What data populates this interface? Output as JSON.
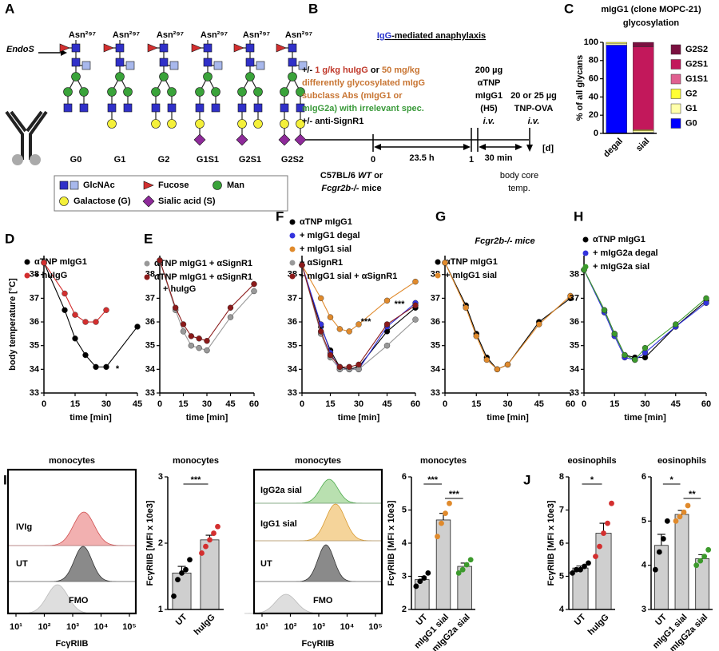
{
  "panel_letters": [
    "A",
    "B",
    "C",
    "D",
    "E",
    "F",
    "G",
    "H",
    "I",
    "J"
  ],
  "panel_a": {
    "asn": "Asn²⁹⁷",
    "endos": "EndoS",
    "glycans": [
      "G0",
      "G1",
      "G2",
      "G1S1",
      "G2S1",
      "G2S2"
    ],
    "legend": {
      "glcnac": "GlcNAc",
      "fucose": "Fucose",
      "man": "Man",
      "galactose": "Galactose (G)",
      "sialic": "Sialic acid (S)"
    }
  },
  "panel_b": {
    "title": [
      {
        "text": "IgG",
        "color": "#2a35d0"
      },
      {
        "text": "-mediated anaphylaxis",
        "color": "#000000"
      }
    ],
    "treatment": [
      [
        {
          "text": "+/- ",
          "color": "#000000"
        },
        {
          "text": "1 g/kg huIgG",
          "color": "#c0392b"
        },
        {
          "text": " or ",
          "color": "#000000"
        },
        {
          "text": "50 mg/kg",
          "color": "#c87533"
        }
      ],
      [
        {
          "text": "differently glycosylated mIgG",
          "color": "#c87533"
        }
      ],
      [
        {
          "text": "subclass Abs (mIgG1 or",
          "color": "#c87533"
        }
      ],
      [
        {
          "text": "mIgG2a) with irrelevant spec.",
          "color": "#3a9a3a"
        }
      ],
      [
        {
          "text": "+/- anti-SignR1",
          "color": "#000000"
        }
      ]
    ],
    "injection1": [
      "200 µg",
      "αTNP",
      "mIgG1",
      "(H5)",
      "i.v."
    ],
    "injection2": [
      "20 or 25 µg",
      "TNP-OVA",
      "i.v."
    ],
    "timeline": {
      "start": "0",
      "day1": "1",
      "unit": "[d]",
      "interval1": "23.5 h",
      "interval2": "30 min"
    },
    "mice": [
      [
        {
          "text": "C57BL/6 "
        },
        {
          "text": "WT",
          "italic": true
        },
        {
          "text": " or"
        }
      ],
      [
        {
          "text": "Fcgr2b-/-",
          "italic": true
        },
        {
          "text": " mice"
        }
      ]
    ],
    "readout": [
      "body core",
      "temp."
    ]
  },
  "chart_data": [
    {
      "type": "stacked_bar",
      "title": "mIgG1 (clone MOPC-21)",
      "subtitle": "glycosylation",
      "ylabel": "% of all glycans",
      "categories": [
        "degal",
        "sial"
      ],
      "ylim": [
        0,
        100
      ],
      "yticks": [
        0,
        20,
        40,
        60,
        80,
        100
      ],
      "series": [
        {
          "name": "G0",
          "color": "#0000ff",
          "values": [
            97,
            1
          ]
        },
        {
          "name": "G1",
          "color": "#ffffaa",
          "values": [
            2,
            2
          ]
        },
        {
          "name": "G2",
          "color": "#ffff33",
          "values": [
            1,
            1
          ]
        },
        {
          "name": "G1S1",
          "color": "#e06090",
          "values": [
            0,
            0
          ]
        },
        {
          "name": "G2S1",
          "color": "#c2185b",
          "values": [
            0,
            91
          ]
        },
        {
          "name": "G2S2",
          "color": "#7a1040",
          "values": [
            0,
            5
          ]
        }
      ]
    },
    {
      "type": "line",
      "ylabel": "body temperature [°C]",
      "xlabel": "time [min]",
      "x": [
        0,
        10,
        15,
        20,
        25,
        30,
        45
      ],
      "xlim": [
        0,
        45
      ],
      "xticks": [
        0,
        15,
        30,
        45
      ],
      "ylim": [
        33,
        38.8
      ],
      "yticks": [
        33,
        34,
        35,
        36,
        37,
        38
      ],
      "annotations": [
        "*"
      ],
      "series": [
        {
          "name": "αTNP mIgG1",
          "color": "#000000",
          "values": [
            38.5,
            36.5,
            35.3,
            34.6,
            34.1,
            34.1,
            35.8
          ]
        },
        {
          "name": "+ huIgG",
          "color": "#d32f2f",
          "values": [
            38.5,
            37.2,
            36.3,
            36.0,
            36.0,
            36.5,
            null
          ]
        }
      ]
    },
    {
      "type": "line",
      "xlabel": "time [min]",
      "x": [
        0,
        10,
        15,
        20,
        25,
        30,
        45,
        60
      ],
      "xlim": [
        0,
        60
      ],
      "xticks": [
        0,
        15,
        30,
        45,
        60
      ],
      "ylim": [
        33,
        38.8
      ],
      "yticks": [
        33,
        34,
        35,
        36,
        37,
        38
      ],
      "series": [
        {
          "name": "αTNP mIgG1 + αSignR1",
          "color": "#999999",
          "values": [
            38.6,
            36.5,
            35.6,
            35.0,
            34.9,
            34.8,
            36.2,
            37.3
          ]
        },
        {
          "name": "αTNP mIgG1 + αSignR1 + huIgG",
          "color": "#8b1a1a",
          "values": [
            38.6,
            36.6,
            35.9,
            35.4,
            35.3,
            35.2,
            36.6,
            37.6
          ]
        }
      ]
    },
    {
      "type": "line",
      "xlabel": "time [min]",
      "x": [
        0,
        10,
        15,
        20,
        25,
        30,
        45,
        60
      ],
      "xlim": [
        0,
        60
      ],
      "xticks": [
        0,
        15,
        30,
        45,
        60
      ],
      "ylim": [
        33,
        38.8
      ],
      "yticks": [
        33,
        34,
        35,
        36,
        37,
        38
      ],
      "annotations": [
        "***",
        "***"
      ],
      "series": [
        {
          "name": "αTNP mIgG1",
          "color": "#000000",
          "values": [
            38.4,
            35.8,
            34.8,
            34.1,
            34.0,
            34.1,
            35.6,
            36.6
          ]
        },
        {
          "name": "+ mIgG1 degal",
          "color": "#3333dd",
          "values": [
            38.4,
            35.9,
            34.7,
            34.0,
            34.0,
            34.0,
            35.8,
            36.8
          ]
        },
        {
          "name": "+ mIgG1 sial",
          "color": "#e08a2c",
          "values": [
            38.4,
            37.0,
            36.2,
            35.7,
            35.6,
            35.9,
            36.9,
            37.7
          ]
        },
        {
          "name": "+ αSignR1",
          "color": "#999999",
          "values": [
            38.4,
            35.5,
            34.5,
            34.0,
            34.0,
            34.0,
            35.0,
            36.1
          ]
        },
        {
          "name": "+ mIgG1 sial + αSignR1",
          "color": "#8b1a1a",
          "values": [
            38.4,
            35.6,
            34.6,
            34.1,
            34.1,
            34.2,
            35.9,
            36.7
          ]
        }
      ]
    },
    {
      "type": "line",
      "title": "Fcgr2b-/- mice",
      "xlabel": "time [min]",
      "x": [
        0,
        10,
        15,
        20,
        25,
        30,
        45,
        60
      ],
      "xlim": [
        0,
        60
      ],
      "xticks": [
        0,
        15,
        30,
        45,
        60
      ],
      "ylim": [
        33,
        38.8
      ],
      "yticks": [
        33,
        34,
        35,
        36,
        37,
        38
      ],
      "series": [
        {
          "name": "αTNP mIgG1",
          "color": "#000000",
          "values": [
            38.5,
            36.7,
            35.5,
            34.5,
            34.0,
            34.2,
            36.0,
            37.0
          ]
        },
        {
          "name": "+ mIgG1 sial",
          "color": "#e08a2c",
          "values": [
            38.5,
            36.6,
            35.4,
            34.4,
            34.0,
            34.2,
            35.9,
            37.1
          ]
        }
      ]
    },
    {
      "type": "line",
      "xlabel": "time [min]",
      "x": [
        0,
        10,
        15,
        20,
        25,
        30,
        45,
        60
      ],
      "xlim": [
        0,
        60
      ],
      "xticks": [
        0,
        15,
        30,
        45,
        60
      ],
      "ylim": [
        33,
        38.8
      ],
      "yticks": [
        33,
        34,
        35,
        36,
        37,
        38
      ],
      "series": [
        {
          "name": "αTNP mIgG1",
          "color": "#000000",
          "values": [
            38.2,
            36.5,
            35.5,
            34.6,
            34.5,
            34.5,
            35.8,
            36.9
          ]
        },
        {
          "name": "+ mIgG2a degal",
          "color": "#3333dd",
          "values": [
            38.2,
            36.4,
            35.4,
            34.5,
            34.4,
            34.7,
            35.8,
            36.8
          ]
        },
        {
          "name": "+ mIgG2a sial",
          "color": "#3c9a2c",
          "values": [
            38.2,
            36.5,
            35.5,
            34.6,
            34.4,
            34.9,
            35.9,
            37.0
          ]
        }
      ]
    },
    {
      "type": "flow",
      "title": "monocytes",
      "xlabel": "FcγRIIB",
      "labels": [
        "IVIg",
        "UT",
        "FMO"
      ],
      "xlim": [
        10,
        100000
      ],
      "xticks": [
        {
          "value": 10,
          "label": "10¹"
        },
        {
          "value": 100,
          "label": "10²"
        },
        {
          "value": 1000,
          "label": "10³"
        },
        {
          "value": 10000,
          "label": "10⁴"
        },
        {
          "value": 100000,
          "label": "10⁵"
        }
      ]
    },
    {
      "type": "bar",
      "title": "monocytes",
      "ylabel": "FcγRIIB [MFI x 10e3]",
      "categories": [
        "UT",
        "huIgG"
      ],
      "values": [
        1.55,
        2.05
      ],
      "errors": [
        0.1,
        0.07
      ],
      "points": [
        [
          1.2,
          1.45,
          1.55,
          1.6,
          1.75
        ],
        [
          1.85,
          1.95,
          2.05,
          2.15,
          2.25
        ]
      ],
      "point_colors": [
        "#000000",
        "#d32f2f"
      ],
      "ylim": [
        1,
        3
      ],
      "yticks": [
        1,
        2,
        3
      ],
      "significance": [
        "***"
      ]
    },
    {
      "type": "flow",
      "title": "monocytes",
      "xlabel": "FcγRIIB",
      "labels": [
        "IgG2a sial",
        "IgG1 sial",
        "UT",
        "FMO"
      ],
      "xlim": [
        10,
        100000
      ],
      "xticks": [
        {
          "value": 10,
          "label": "10¹"
        },
        {
          "value": 100,
          "label": "10²"
        },
        {
          "value": 1000,
          "label": "10³"
        },
        {
          "value": 10000,
          "label": "10⁴"
        },
        {
          "value": 100000,
          "label": "10⁵"
        }
      ]
    },
    {
      "type": "bar",
      "title": "monocytes",
      "ylabel": "FcγRIIB [MFI x 10e3]",
      "categories": [
        "UT",
        "mIgG1 sial",
        "mIgG2a sial"
      ],
      "values": [
        2.9,
        4.7,
        3.3
      ],
      "errors": [
        0.1,
        0.2,
        0.1
      ],
      "points": [
        [
          2.7,
          2.85,
          2.95,
          3.1
        ],
        [
          4.2,
          4.6,
          4.9,
          5.2
        ],
        [
          3.1,
          3.2,
          3.35,
          3.5
        ]
      ],
      "point_colors": [
        "#000000",
        "#e08a2c",
        "#3c9a2c"
      ],
      "ylim": [
        2,
        6
      ],
      "yticks": [
        2,
        3,
        4,
        5,
        6
      ],
      "significance": [
        "***",
        "***"
      ]
    },
    {
      "type": "bar",
      "title": "eosinophils",
      "ylabel": "FcγRIIB [MFI x 10e3]",
      "categories": [
        "UT",
        "huIgG"
      ],
      "values": [
        5.25,
        6.3
      ],
      "errors": [
        0.06,
        0.3
      ],
      "points": [
        [
          5.1,
          5.2,
          5.2,
          5.3,
          5.4
        ],
        [
          5.6,
          5.9,
          6.3,
          6.6,
          7.2
        ]
      ],
      "point_colors": [
        "#000000",
        "#d32f2f"
      ],
      "ylim": [
        4,
        8
      ],
      "yticks": [
        4,
        5,
        6,
        7,
        8
      ],
      "significance": [
        "*"
      ]
    },
    {
      "type": "bar",
      "title": "eosinophils",
      "categories": [
        "UT",
        "mIgG1 sial",
        "mIgG2a sial"
      ],
      "values": [
        4.45,
        5.15,
        4.15
      ],
      "errors": [
        0.25,
        0.09,
        0.09
      ],
      "points": [
        [
          3.9,
          4.3,
          4.6,
          5.0
        ],
        [
          5.0,
          5.1,
          5.2,
          5.35
        ],
        [
          4.0,
          4.1,
          4.2,
          4.35
        ]
      ],
      "point_colors": [
        "#000000",
        "#e08a2c",
        "#3c9a2c"
      ],
      "ylim": [
        3,
        6
      ],
      "yticks": [
        3,
        4,
        5,
        6
      ],
      "significance": [
        "*",
        "**"
      ]
    }
  ]
}
